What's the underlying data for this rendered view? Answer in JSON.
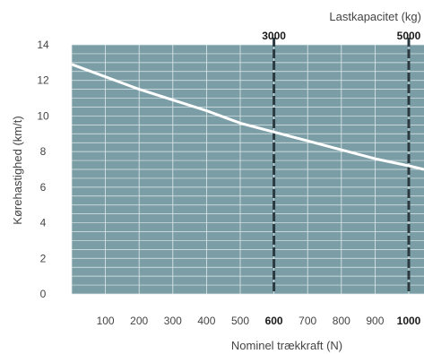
{
  "chart_data": {
    "type": "line",
    "xlabel": "Nominel trækkraft (N)",
    "ylabel": "Kørehastighed (km/t)",
    "top_axis_label": "Lastkapacitet (kg)",
    "xlim": [
      0,
      1000
    ],
    "ylim": [
      0,
      14
    ],
    "x_ticks": [
      {
        "value": 100,
        "label": "100",
        "bold": false
      },
      {
        "value": 200,
        "label": "200",
        "bold": false
      },
      {
        "value": 300,
        "label": "300",
        "bold": false
      },
      {
        "value": 400,
        "label": "400",
        "bold": false
      },
      {
        "value": 500,
        "label": "500",
        "bold": false
      },
      {
        "value": 600,
        "label": "600",
        "bold": true
      },
      {
        "value": 700,
        "label": "700",
        "bold": false
      },
      {
        "value": 800,
        "label": "800",
        "bold": false
      },
      {
        "value": 900,
        "label": "900",
        "bold": false
      },
      {
        "value": 1000,
        "label": "1000",
        "bold": true
      }
    ],
    "y_ticks": [
      {
        "value": 0,
        "label": "0"
      },
      {
        "value": 2,
        "label": "2"
      },
      {
        "value": 4,
        "label": "4"
      },
      {
        "value": 6,
        "label": "6"
      },
      {
        "value": 8,
        "label": "8"
      },
      {
        "value": 10,
        "label": "10"
      },
      {
        "value": 12,
        "label": "12"
      },
      {
        "value": 14,
        "label": "14"
      }
    ],
    "top_ticks": [
      {
        "x_value": 600,
        "label": "3000"
      },
      {
        "x_value": 1000,
        "label": "5000"
      }
    ],
    "reference_lines_x": [
      600,
      1000
    ],
    "grid": true,
    "series": [
      {
        "x": [
          0,
          100,
          200,
          300,
          400,
          500,
          600,
          700,
          800,
          900,
          1000,
          1050
        ],
        "y": [
          12.9,
          12.2,
          11.5,
          10.9,
          10.3,
          9.6,
          9.1,
          8.6,
          8.1,
          7.6,
          7.2,
          7.0
        ]
      }
    ],
    "colors": {
      "plot_background": "#7b9ea6",
      "grid": "#dfe9ec",
      "line": "#ffffff",
      "reference_line": "#2b3a40"
    }
  }
}
